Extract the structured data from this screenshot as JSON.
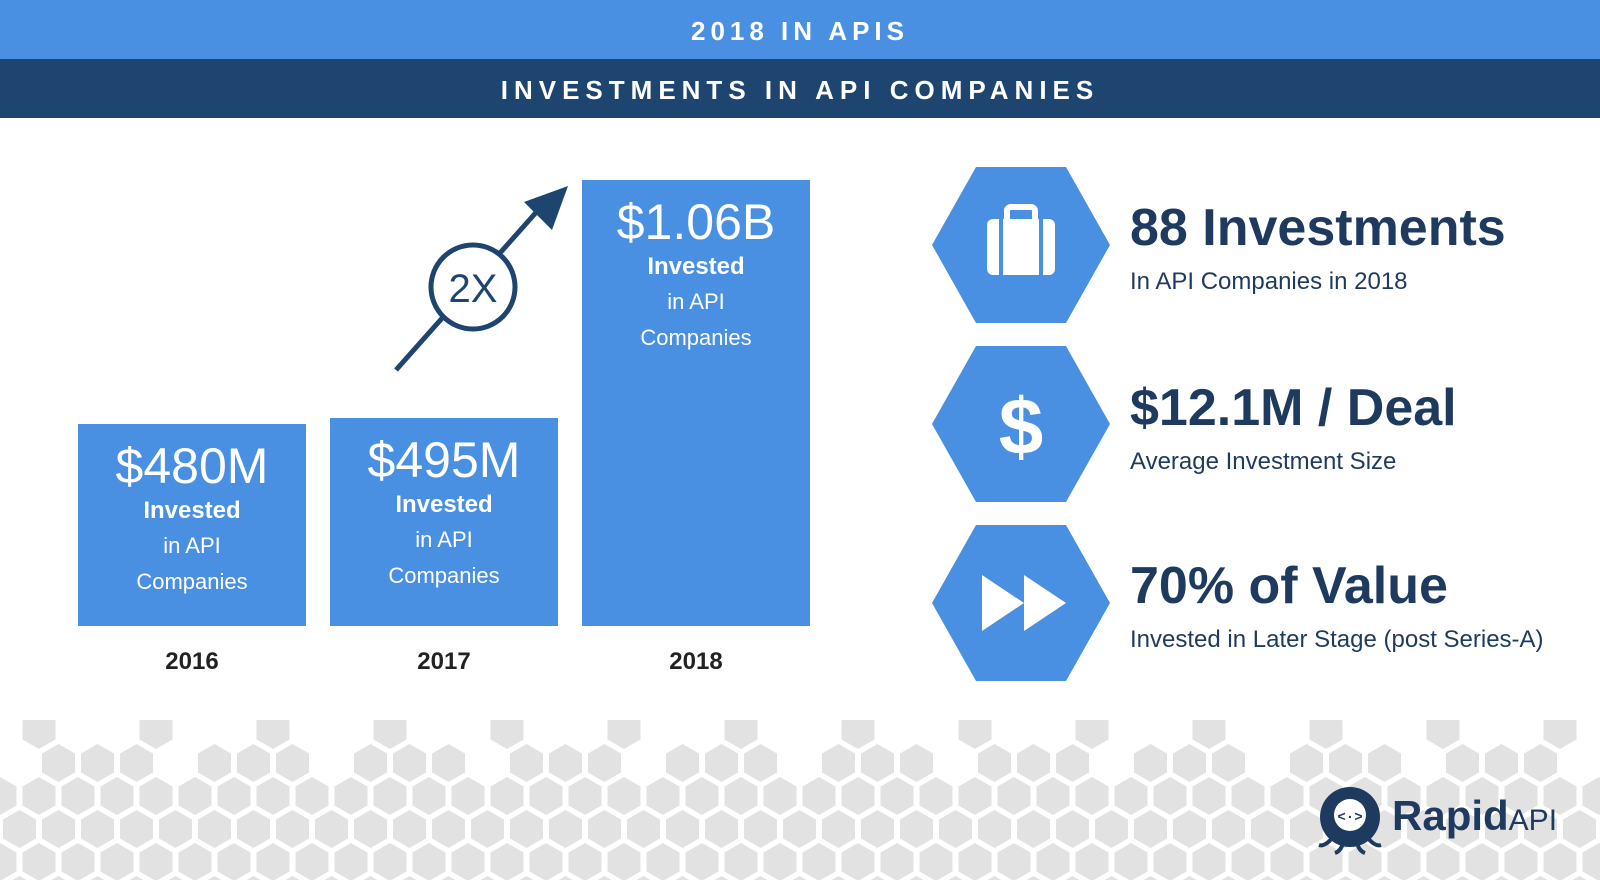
{
  "header": {
    "title": "2018 IN APIS",
    "subtitle": "INVESTMENTS IN API COMPANIES"
  },
  "chart_data": {
    "type": "bar",
    "categories": [
      "2016",
      "2017",
      "2018"
    ],
    "values": [
      480,
      495,
      1060
    ],
    "value_labels": [
      "$480M",
      "$495M",
      "$1.06B"
    ],
    "bar_caption_bold": "Invested",
    "bar_caption_line1": "in API",
    "bar_caption_line2": "Companies",
    "annotation": "2X",
    "grid": false
  },
  "stats": [
    {
      "title": "88 Investments",
      "subtitle": "In API Companies in 2018",
      "icon": "briefcase-icon"
    },
    {
      "title": "$12.1M / Deal",
      "subtitle": "Average Investment Size",
      "icon": "dollar-icon"
    },
    {
      "title": "70% of Value",
      "subtitle": "Invested in Later Stage (post Series-A)",
      "icon": "fast-forward-icon"
    }
  ],
  "logo": {
    "brand": "Rapid",
    "suffix": "API"
  },
  "colors": {
    "accent": "#4a90e2",
    "navy": "#1e4470",
    "text_dark": "#1e3a5f",
    "hex_pattern": "#e2e2e2"
  }
}
